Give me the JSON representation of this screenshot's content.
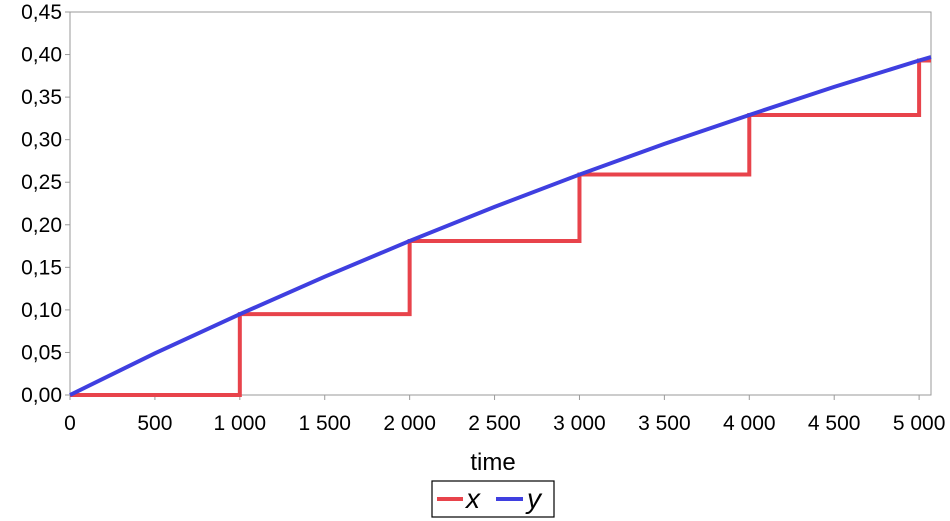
{
  "chart_data": {
    "type": "line",
    "title": "",
    "xlabel": "time",
    "ylabel": "",
    "xlim": [
      0,
      5070
    ],
    "ylim": [
      0,
      0.45
    ],
    "grid": false,
    "legend_position": "bottom-center",
    "x_ticks": [
      0,
      500,
      1000,
      1500,
      2000,
      2500,
      3000,
      3500,
      4000,
      4500,
      5000
    ],
    "x_tick_labels": [
      "0",
      "500",
      "1 000",
      "1 500",
      "2 000",
      "2 500",
      "3 000",
      "3 500",
      "4 000",
      "4 500",
      "5 000"
    ],
    "y_ticks": [
      0,
      0.05,
      0.1,
      0.15,
      0.2,
      0.25,
      0.3,
      0.35,
      0.4,
      0.45
    ],
    "y_tick_labels": [
      "0,00",
      "0,05",
      "0,10",
      "0,15",
      "0,20",
      "0,25",
      "0,30",
      "0,35",
      "0,40",
      "0,45"
    ],
    "series": [
      {
        "name": "x",
        "color": "#e8434b",
        "style": "step",
        "x": [
          0,
          1000,
          1000,
          2000,
          2000,
          3000,
          3000,
          4000,
          4000,
          5000,
          5000,
          5070
        ],
        "y": [
          0,
          0,
          0.095,
          0.095,
          0.181,
          0.181,
          0.259,
          0.259,
          0.329,
          0.329,
          0.393,
          0.393
        ]
      },
      {
        "name": "y",
        "color": "#3f3fe0",
        "style": "line",
        "x": [
          0,
          500,
          1000,
          1500,
          2000,
          2500,
          3000,
          3500,
          4000,
          4500,
          5000,
          5070
        ],
        "y": [
          0,
          0.049,
          0.095,
          0.139,
          0.181,
          0.221,
          0.259,
          0.295,
          0.329,
          0.362,
          0.393,
          0.397
        ]
      }
    ]
  }
}
